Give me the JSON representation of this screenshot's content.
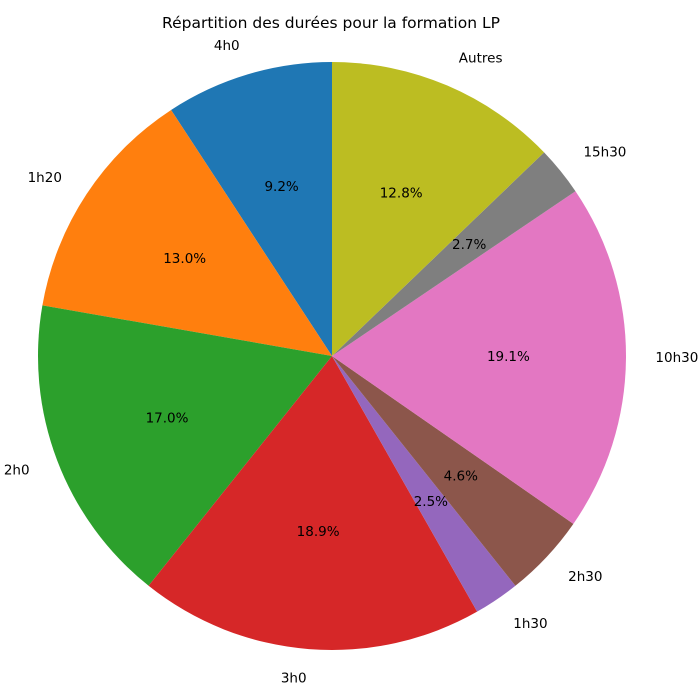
{
  "chart_data": {
    "type": "pie",
    "title": "Répartition des durées pour la formation LP",
    "start_angle_deg": 90,
    "direction": "counterclockwise",
    "slices": [
      {
        "label": "4h0",
        "value": 9.2,
        "pct_label": "9.2%",
        "color": "#1f77b4"
      },
      {
        "label": "1h20",
        "value": 13.0,
        "pct_label": "13.0%",
        "color": "#ff7f0e"
      },
      {
        "label": "2h0",
        "value": 17.0,
        "pct_label": "17.0%",
        "color": "#2ca02c"
      },
      {
        "label": "3h0",
        "value": 18.9,
        "pct_label": "18.9%",
        "color": "#d62728"
      },
      {
        "label": "1h30",
        "value": 2.5,
        "pct_label": "2.5%",
        "color": "#9467bd"
      },
      {
        "label": "2h30",
        "value": 4.6,
        "pct_label": "4.6%",
        "color": "#8c564b"
      },
      {
        "label": "10h30",
        "value": 19.1,
        "pct_label": "19.1%",
        "color": "#e377c2"
      },
      {
        "label": "15h30",
        "value": 2.7,
        "pct_label": "2.7%",
        "color": "#7f7f7f"
      },
      {
        "label": "Autres",
        "value": 12.8,
        "pct_label": "12.8%",
        "color": "#bcbd22"
      }
    ]
  }
}
